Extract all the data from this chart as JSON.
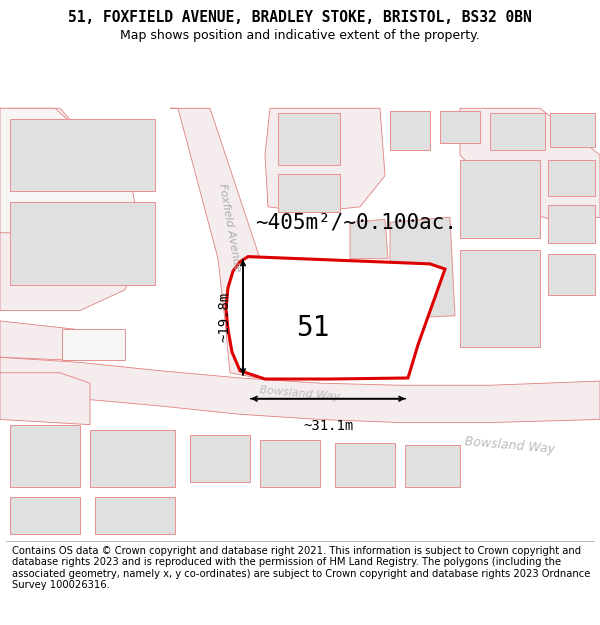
{
  "title": "51, FOXFIELD AVENUE, BRADLEY STOKE, BRISTOL, BS32 0BN",
  "subtitle": "Map shows position and indicative extent of the property.",
  "footer": "Contains OS data © Crown copyright and database right 2021. This information is subject to Crown copyright and database rights 2023 and is reproduced with the permission of HM Land Registry. The polygons (including the associated geometry, namely x, y co-ordinates) are subject to Crown copyright and database rights 2023 Ordnance Survey 100026316.",
  "area_label": "~405m²/~0.100ac.",
  "plot_number": "51",
  "width_label": "~31.1m",
  "height_label": "~19.8m",
  "road_pink": "#f0c0c0",
  "road_edge": "#e08080",
  "building_fill": "#e0e0e0",
  "building_edge": "#e89090",
  "plot_fill": "#ffffff",
  "plot_edge": "#dd0000",
  "map_bg": "#ffffff",
  "title_fontsize": 10.5,
  "subtitle_fontsize": 9,
  "footer_fontsize": 7.2,
  "area_fontsize": 15,
  "number_fontsize": 20,
  "meas_fontsize": 10
}
